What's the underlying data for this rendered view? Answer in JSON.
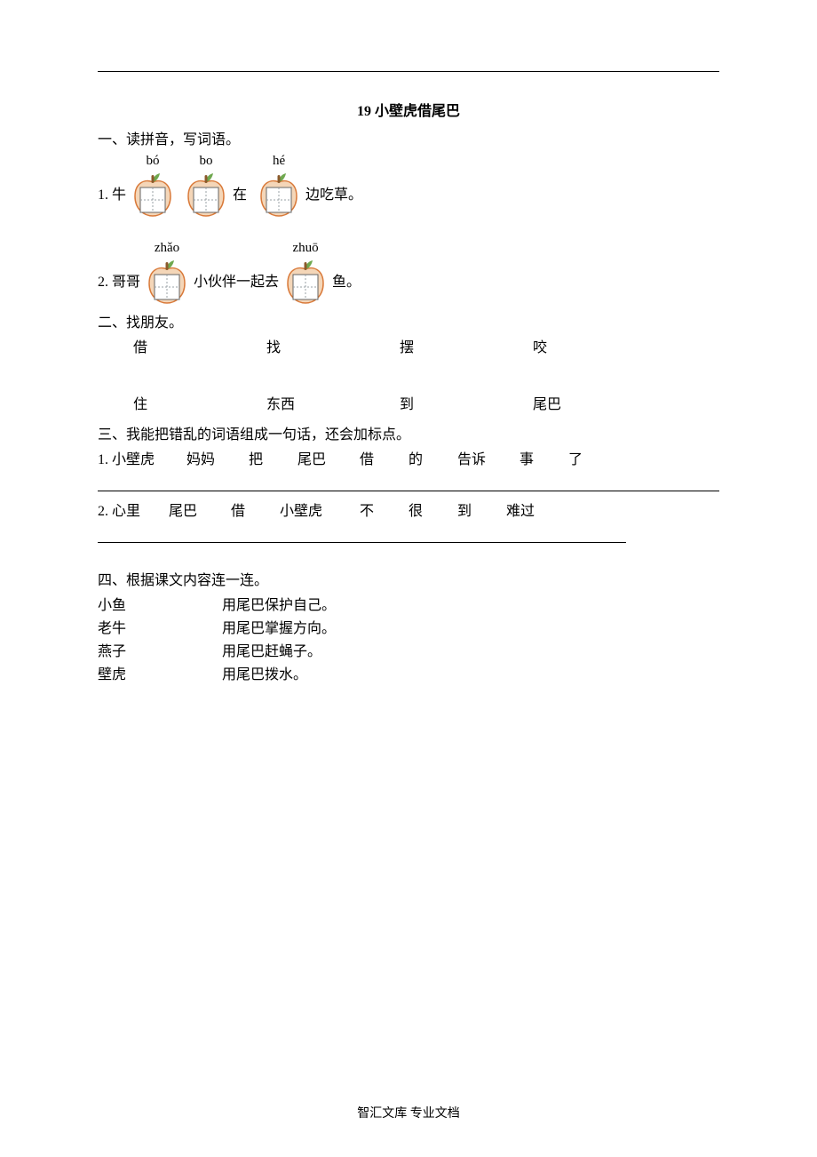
{
  "title": "19 小壁虎借尾巴",
  "section1": {
    "heading": "一、读拼音，写词语。",
    "q1": {
      "num": "1. 牛",
      "blanks": [
        {
          "pinyin": "bó"
        },
        {
          "pinyin": "bo"
        }
      ],
      "mid": "在",
      "blanks2": [
        {
          "pinyin": "hé"
        }
      ],
      "tail": "边吃草。"
    },
    "q2": {
      "num": "2. 哥哥",
      "blanks": [
        {
          "pinyin": "zhǎo"
        }
      ],
      "mid": "小伙伴一起去",
      "blanks2": [
        {
          "pinyin": "zhuō"
        }
      ],
      "tail": "鱼。"
    }
  },
  "section2": {
    "heading": "二、找朋友。",
    "row1": [
      "借",
      "找",
      "摆",
      "咬"
    ],
    "row2": [
      "住",
      "东西",
      "到",
      "尾巴"
    ]
  },
  "section3": {
    "heading": "三、我能把错乱的词语组成一句话，还会加标点。",
    "q1": [
      "1. 小壁虎",
      "妈妈",
      "把",
      "尾巴",
      "借",
      "的",
      "告诉",
      "事",
      "了"
    ],
    "q2": [
      "2. 心里",
      "尾巴",
      "借",
      "小壁虎",
      "不",
      "很",
      "到",
      "难过"
    ]
  },
  "section4": {
    "heading": "四、根据课文内容连一连。",
    "pairs": [
      {
        "left": "小鱼",
        "right": "用尾巴保护自己。"
      },
      {
        "left": "老牛",
        "right": "用尾巴掌握方向。"
      },
      {
        "left": "燕子",
        "right": "用尾巴赶蝇子。"
      },
      {
        "left": "壁虎",
        "right": "用尾巴拨水。"
      }
    ]
  },
  "footer": "智汇文库 专业文档",
  "apple": {
    "body_fill": "#f4d6b8",
    "body_stroke": "#d97a3a",
    "leaf_fill": "#6fa84f",
    "stem_fill": "#8b5a2b",
    "grid_stroke": "#9aa0a6",
    "inner_fill": "#ffffff"
  }
}
